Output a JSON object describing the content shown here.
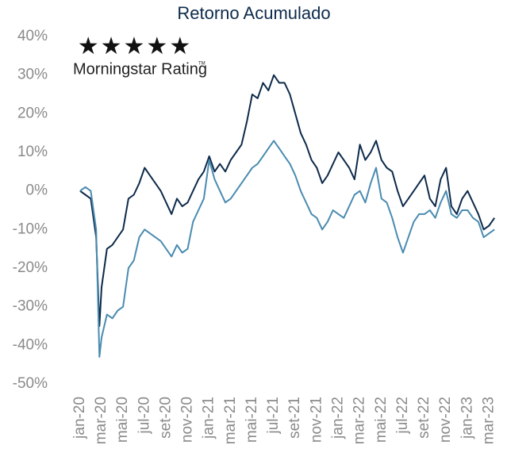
{
  "chart_data": {
    "type": "line",
    "title": "Retorno Acumulado",
    "annotations": [
      "Morningstar Rating",
      "TM"
    ],
    "x": [
      0,
      0.5,
      1,
      1.5,
      1.8,
      2,
      2.5,
      3,
      3.5,
      4,
      4.5,
      5,
      5.5,
      6,
      6.5,
      7,
      7.5,
      8,
      8.5,
      9,
      9.5,
      10,
      10.5,
      11,
      11.5,
      12,
      12.5,
      13,
      13.5,
      14,
      14.5,
      15,
      15.5,
      16,
      16.5,
      17,
      17.5,
      18,
      18.5,
      19,
      19.5,
      20,
      20.5,
      21,
      21.5,
      22,
      22.5,
      23,
      23.5,
      24,
      24.5,
      25,
      25.5,
      26,
      26.5,
      27,
      27.5,
      28,
      28.5,
      29,
      29.5,
      30,
      30.5,
      31,
      31.5,
      32,
      32.5,
      33,
      33.5,
      34,
      34.5,
      35,
      35.5,
      36,
      36.5,
      37,
      37.5,
      38,
      38.5
    ],
    "series": [
      {
        "color": "#0d2a4a",
        "values": [
          0,
          -1,
          -2,
          -12,
          -35,
          -25,
          -15,
          -14,
          -12,
          -10,
          -2,
          -1,
          2,
          6,
          4,
          2,
          0,
          -3,
          -6,
          -2,
          -4,
          -3,
          0,
          3,
          5,
          9,
          5,
          7,
          5,
          8,
          10,
          12,
          18,
          25,
          24,
          28,
          26,
          30,
          28,
          28,
          25,
          20,
          15,
          12,
          8,
          6,
          2,
          4,
          7,
          10,
          8,
          6,
          3,
          12,
          8,
          10,
          13,
          8,
          6,
          5,
          0,
          -4,
          -2,
          0,
          2,
          4,
          -2,
          -4,
          3,
          6,
          -4,
          -6,
          -2,
          0,
          -3,
          -6,
          -10,
          -9,
          -7
        ]
      },
      {
        "color": "#4a8bb0",
        "values": [
          0,
          1,
          0,
          -10,
          -43,
          -38,
          -32,
          -33,
          -31,
          -30,
          -20,
          -18,
          -12,
          -10,
          -11,
          -12,
          -13,
          -15,
          -17,
          -14,
          -16,
          -15,
          -8,
          -5,
          -2,
          8,
          3,
          0,
          -3,
          -2,
          0,
          2,
          4,
          6,
          7,
          9,
          11,
          13,
          11,
          9,
          7,
          4,
          0,
          -3,
          -6,
          -7,
          -10,
          -8,
          -5,
          -6,
          -7,
          -4,
          -1,
          0,
          -3,
          2,
          6,
          -2,
          -3,
          -7,
          -12,
          -16,
          -12,
          -8,
          -6,
          -6,
          -5,
          -7,
          -3,
          0,
          -6,
          -7,
          -5,
          -5,
          -7,
          -8,
          -12,
          -11,
          -10
        ]
      }
    ],
    "xlim": [
      -0.8,
      39
    ],
    "xticks": [
      {
        "value": 0,
        "label": "jan-20"
      },
      {
        "value": 2,
        "label": "mar-20"
      },
      {
        "value": 4,
        "label": "mai-20"
      },
      {
        "value": 6,
        "label": "jul-20"
      },
      {
        "value": 8,
        "label": "set-20"
      },
      {
        "value": 10,
        "label": "nov-20"
      },
      {
        "value": 12,
        "label": "jan-21"
      },
      {
        "value": 14,
        "label": "mar-21"
      },
      {
        "value": 16,
        "label": "mai-21"
      },
      {
        "value": 18,
        "label": "jul-21"
      },
      {
        "value": 20,
        "label": "set-21"
      },
      {
        "value": 22,
        "label": "nov-21"
      },
      {
        "value": 24,
        "label": "jan-22"
      },
      {
        "value": 26,
        "label": "mar-22"
      },
      {
        "value": 28,
        "label": "mai-22"
      },
      {
        "value": 30,
        "label": "jul-22"
      },
      {
        "value": 32,
        "label": "set-22"
      },
      {
        "value": 34,
        "label": "nov-22"
      },
      {
        "value": 36,
        "label": "jan-23"
      },
      {
        "value": 38,
        "label": "mar-23"
      }
    ],
    "ylim": [
      -50,
      40
    ],
    "yticks": [
      {
        "value": 40,
        "label": "40%"
      },
      {
        "value": 30,
        "label": "30%"
      },
      {
        "value": 20,
        "label": "20%"
      },
      {
        "value": 10,
        "label": "10%"
      },
      {
        "value": 0,
        "label": "0%"
      },
      {
        "value": -10,
        "label": "-10%"
      },
      {
        "value": -20,
        "label": "-20%"
      },
      {
        "value": -30,
        "label": "-30%"
      },
      {
        "value": -40,
        "label": "-40%"
      },
      {
        "value": -50,
        "label": "-50%"
      }
    ],
    "grid": false
  }
}
